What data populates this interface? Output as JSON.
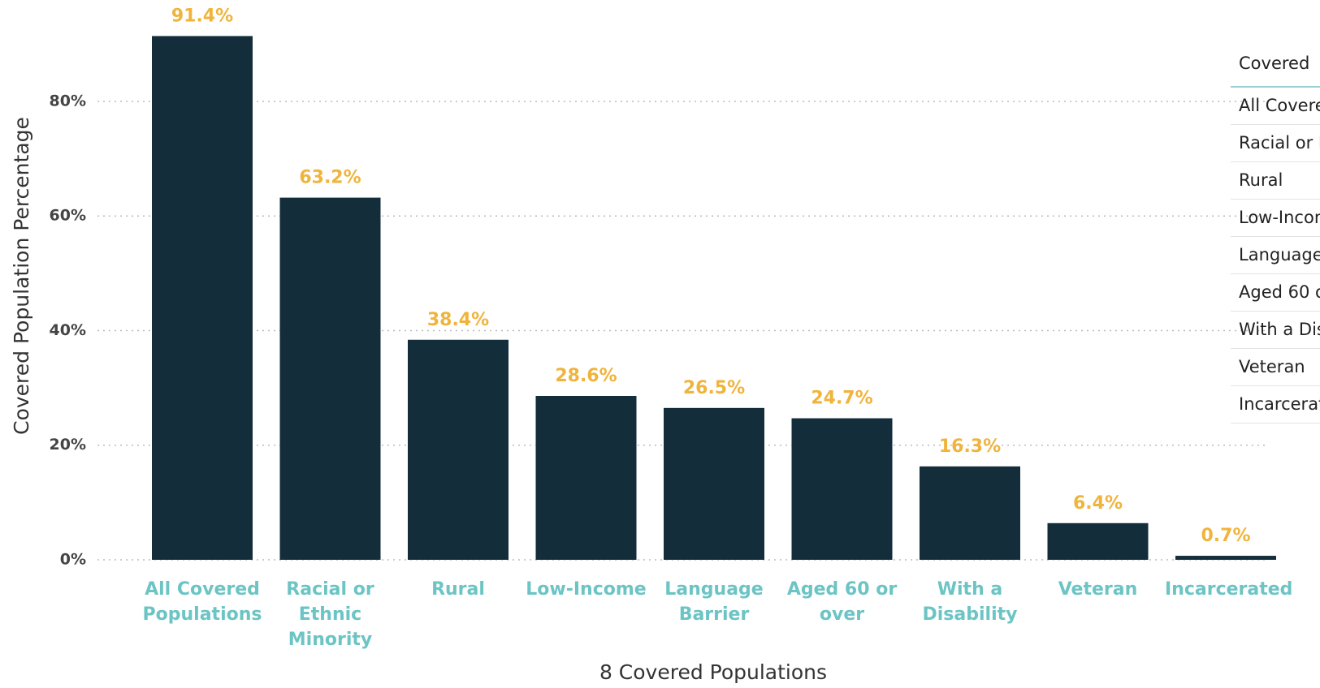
{
  "chart_data": {
    "type": "bar",
    "x_label": "8 Covered Populations",
    "y_label": "Covered Population Percentage",
    "categories": [
      "All Covered Populations",
      "Racial or Ethnic Minority",
      "Rural",
      "Low-Income",
      "Language Barrier",
      "Aged 60 or over",
      "With a Disability",
      "Veteran",
      "Incarcerated"
    ],
    "values": [
      91.4,
      63.2,
      38.4,
      28.6,
      26.5,
      24.7,
      16.3,
      6.4,
      0.7
    ],
    "value_labels": [
      "91.4%",
      "63.2%",
      "38.4%",
      "28.6%",
      "26.5%",
      "24.7%",
      "16.3%",
      "6.4%",
      "0.7%"
    ],
    "color": "#132d3b",
    "value_label_color": "#f0b43c",
    "category_label_color": "#6cc4c4",
    "ylim": [
      0,
      95
    ],
    "yticks": [
      {
        "value": 0,
        "label": "0%"
      },
      {
        "value": 20,
        "label": "20%"
      },
      {
        "value": 40,
        "label": "40%"
      },
      {
        "value": 60,
        "label": "60%"
      },
      {
        "value": 80,
        "label": "80%"
      }
    ],
    "grid": true,
    "table_header": "Covered"
  }
}
